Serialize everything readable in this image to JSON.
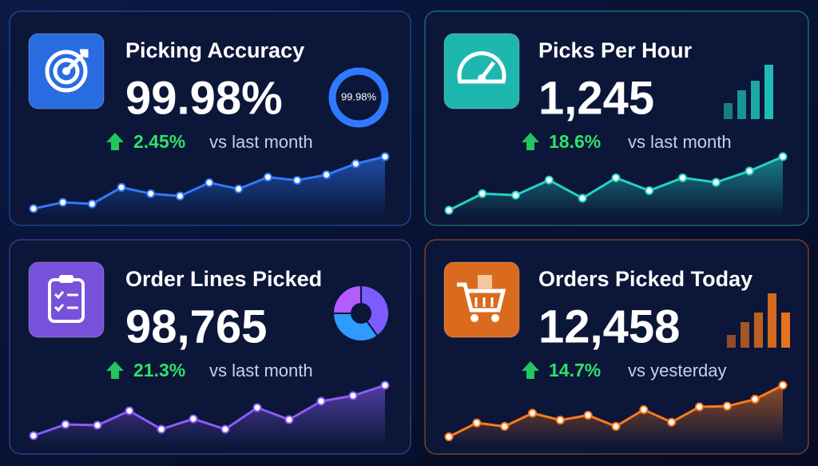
{
  "cards": [
    {
      "title": "Picking Accuracy",
      "value": "99.98%",
      "change": "2.45%",
      "comparison": "vs last month",
      "color": "#2f7bff",
      "donut": {
        "value": 99.98,
        "label": "99.98%"
      },
      "trend": [
        3,
        11,
        9,
        30,
        22,
        19,
        36,
        28,
        43,
        39,
        46,
        60,
        69
      ]
    },
    {
      "title": "Picks Per Hour",
      "value": "1,245",
      "change": "18.6%",
      "comparison": "vs last month",
      "color": "#22d3c5",
      "bars": [
        25,
        45,
        60,
        85
      ],
      "trend": [
        1,
        23,
        21,
        41,
        17,
        44,
        27,
        44,
        38,
        53,
        72
      ]
    },
    {
      "title": "Order Lines Picked",
      "value": "98,765",
      "change": "21.3%",
      "comparison": "vs last month",
      "color": "#8b5cf6",
      "pie": [
        40,
        35,
        25
      ],
      "trend": [
        5,
        19,
        18,
        36,
        13,
        26,
        13,
        40,
        25,
        48,
        55,
        68
      ]
    },
    {
      "title": "Orders Picked Today",
      "value": "12,458",
      "change": "14.7%",
      "comparison": "vs yesterday",
      "color": "#ff7a1a",
      "bars": [
        20,
        40,
        55,
        85,
        55
      ],
      "trend": [
        4,
        24,
        19,
        38,
        28,
        35,
        19,
        43,
        25,
        47,
        48,
        58,
        78
      ]
    }
  ]
}
